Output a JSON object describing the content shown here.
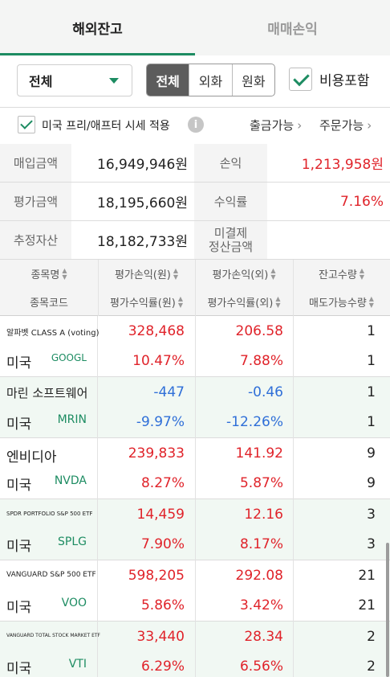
{
  "tabs": {
    "overseas_balance": "해외잔고",
    "trade_pnl": "매매손익"
  },
  "filter": {
    "account_select": "전체",
    "currency_options": [
      "전체",
      "외화",
      "원화"
    ],
    "include_cost_label": "비용포함"
  },
  "options": {
    "premarket_label": "미국 프리/애프터 시세 적용",
    "info_icon": "i",
    "withdrawable": "출금가능",
    "orderable": "주문가능"
  },
  "summary": {
    "purchase_label": "매입금액",
    "purchase_value": "16,949,946원",
    "pnl_label": "손익",
    "pnl_value": "1,213,958원",
    "eval_label": "평가금액",
    "eval_value": "18,195,660원",
    "return_label": "수익률",
    "return_value": "7.16%",
    "est_assets_label": "추정자산",
    "est_assets_value": "18,182,733원",
    "unsettled_label_1": "미결제",
    "unsettled_label_2": "정산금액",
    "unsettled_value": ""
  },
  "table_header": {
    "name": "종목명",
    "eval_pnl_krw": "평가손익(원)",
    "eval_pnl_fx": "평가손익(외)",
    "qty": "잔고수량",
    "code": "종목코드",
    "eval_rate_krw": "평가수익률(원)",
    "eval_rate_fx": "평가수익률(외)",
    "sell_qty": "매도가능수량"
  },
  "rows": [
    {
      "name": "알파벳 CLASS A (voting)",
      "country": "미국",
      "code": "GOOGL",
      "pnl_krw": "328,468",
      "pnl_fx": "206.58",
      "qty": "1",
      "rate_krw": "10.47%",
      "rate_fx": "7.88%",
      "sell_qty": "1"
    },
    {
      "name": "마린 소프트웨어",
      "country": "미국",
      "code": "MRIN",
      "pnl_krw": "-447",
      "pnl_fx": "-0.46",
      "qty": "1",
      "rate_krw": "-9.97%",
      "rate_fx": "-12.26%",
      "sell_qty": "1"
    },
    {
      "name": "엔비디아",
      "country": "미국",
      "code": "NVDA",
      "pnl_krw": "239,833",
      "pnl_fx": "141.92",
      "qty": "9",
      "rate_krw": "8.27%",
      "rate_fx": "5.87%",
      "sell_qty": "9"
    },
    {
      "name": "SPDR PORTFOLIO S&P 500 ETF",
      "country": "미국",
      "code": "SPLG",
      "pnl_krw": "14,459",
      "pnl_fx": "12.16",
      "qty": "3",
      "rate_krw": "7.90%",
      "rate_fx": "8.17%",
      "sell_qty": "3"
    },
    {
      "name": "VANGUARD S&P 500 ETF",
      "country": "미국",
      "code": "VOO",
      "pnl_krw": "598,205",
      "pnl_fx": "292.08",
      "qty": "21",
      "rate_krw": "5.86%",
      "rate_fx": "3.42%",
      "sell_qty": "21"
    },
    {
      "name": "VANGUARD TOTAL STOCK MARKET ETF",
      "country": "미국",
      "code": "VTI",
      "pnl_krw": "33,440",
      "pnl_fx": "28.34",
      "qty": "2",
      "rate_krw": "6.29%",
      "rate_fx": "6.56%",
      "sell_qty": "2"
    }
  ],
  "colors": {
    "accent": "#1d8c62",
    "gain": "#e0232a",
    "loss": "#2f6fd8"
  }
}
